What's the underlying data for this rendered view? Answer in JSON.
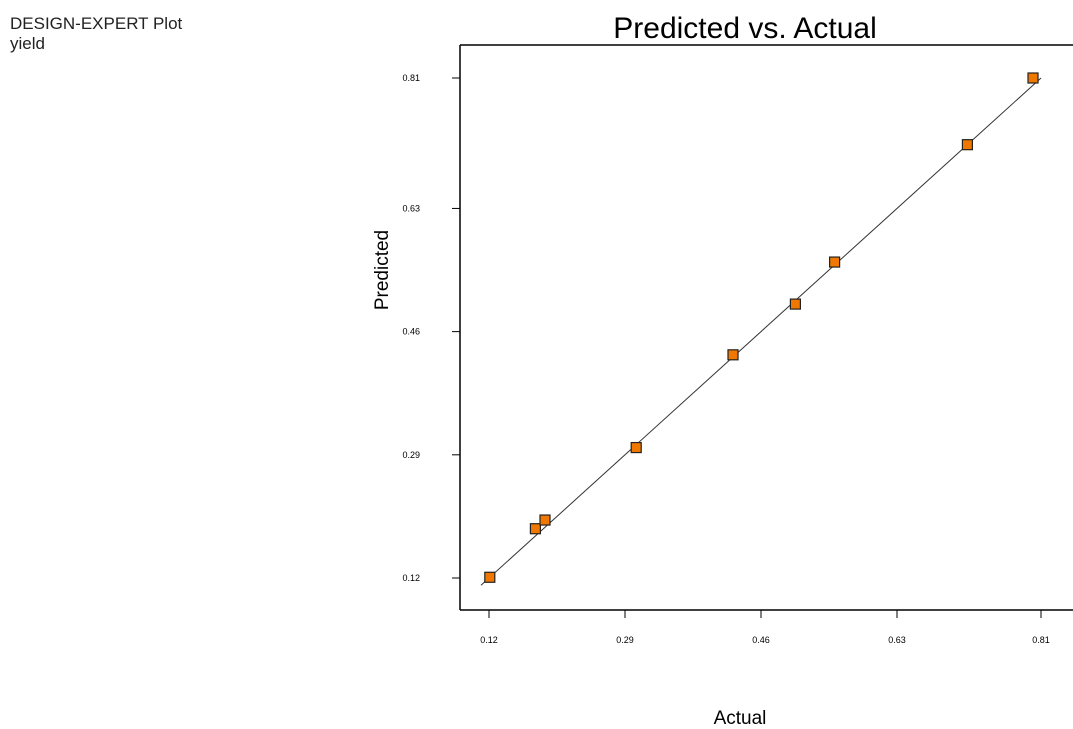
{
  "header": {
    "plot_name": "DESIGN-EXPERT Plot",
    "response": "yield"
  },
  "colors": {
    "point_fill": "#f07800",
    "point_stroke": "#222222",
    "line": "#333333",
    "axis": "#000000"
  },
  "chart_data": {
    "type": "scatter",
    "title": "Predicted vs. Actual",
    "xlabel": "Actual",
    "ylabel": "Predicted",
    "xlim": [
      0.12,
      0.81
    ],
    "ylim": [
      0.12,
      0.81
    ],
    "xticks": [
      "0.12",
      "0.29",
      "0.46",
      "0.63",
      "0.81"
    ],
    "yticks": [
      "0.12",
      "0.29",
      "0.46",
      "0.63",
      "0.81"
    ],
    "grid": false,
    "reference_line": [
      [
        0.11,
        0.11
      ],
      [
        0.81,
        0.81
      ]
    ],
    "x": [
      0.121,
      0.178,
      0.19,
      0.304,
      0.425,
      0.503,
      0.552,
      0.718,
      0.8
    ],
    "y": [
      0.121,
      0.188,
      0.2,
      0.3,
      0.428,
      0.498,
      0.556,
      0.718,
      0.81
    ]
  }
}
